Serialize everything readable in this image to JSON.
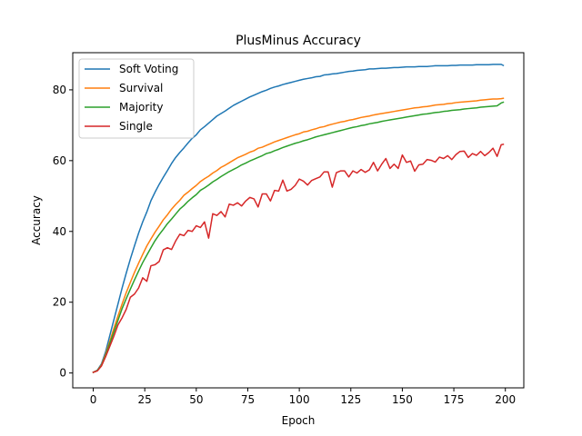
{
  "chart_data": {
    "type": "line",
    "title": "PlusMinus Accuracy",
    "xlabel": "Epoch",
    "ylabel": "Accuracy",
    "xlim": [
      -9.95,
      208.95
    ],
    "ylim": [
      -4.2,
      90.5
    ],
    "xticks": [
      0,
      25,
      50,
      75,
      100,
      125,
      150,
      175,
      200
    ],
    "yticks": [
      0,
      20,
      40,
      60,
      80
    ],
    "grid": false,
    "legend_position": "top-left",
    "series": [
      {
        "name": "Soft Voting",
        "color": "#1f77b4",
        "x": [
          0,
          2,
          4,
          6,
          8,
          10,
          12,
          14,
          16,
          18,
          20,
          22,
          24,
          26,
          28,
          30,
          32,
          34,
          36,
          38,
          40,
          42,
          44,
          46,
          48,
          50,
          52,
          54,
          56,
          58,
          60,
          62,
          64,
          66,
          68,
          70,
          72,
          74,
          76,
          78,
          80,
          82,
          84,
          86,
          88,
          90,
          92,
          94,
          96,
          98,
          100,
          102,
          104,
          106,
          108,
          110,
          112,
          114,
          116,
          118,
          120,
          122,
          124,
          126,
          128,
          130,
          132,
          134,
          136,
          138,
          140,
          142,
          144,
          146,
          148,
          150,
          152,
          154,
          156,
          158,
          160,
          162,
          164,
          166,
          168,
          170,
          172,
          174,
          176,
          178,
          180,
          182,
          184,
          186,
          188,
          190,
          192,
          194,
          196,
          198,
          199
        ],
        "y": [
          0.2,
          0.8,
          2.6,
          6.0,
          10.5,
          15.0,
          19.5,
          24.0,
          28.2,
          32.2,
          35.9,
          39.5,
          42.7,
          45.5,
          48.7,
          51.1,
          53.3,
          55.3,
          57.2,
          59.2,
          60.9,
          62.3,
          63.6,
          65.0,
          66.3,
          67.3,
          68.7,
          69.6,
          70.6,
          71.6,
          72.6,
          73.3,
          74.0,
          74.8,
          75.6,
          76.2,
          76.8,
          77.4,
          78.0,
          78.5,
          79.0,
          79.5,
          79.9,
          80.4,
          80.8,
          81.1,
          81.5,
          81.8,
          82.1,
          82.4,
          82.7,
          83.0,
          83.2,
          83.4,
          83.7,
          83.8,
          84.2,
          84.3,
          84.5,
          84.6,
          84.8,
          85.0,
          85.2,
          85.3,
          85.5,
          85.6,
          85.7,
          85.9,
          85.9,
          86.0,
          86.1,
          86.1,
          86.2,
          86.3,
          86.3,
          86.4,
          86.5,
          86.5,
          86.5,
          86.6,
          86.6,
          86.6,
          86.7,
          86.8,
          86.8,
          86.8,
          86.8,
          86.9,
          86.9,
          87.0,
          87.0,
          87.0,
          87.0,
          87.1,
          87.1,
          87.1,
          87.1,
          87.2,
          87.2,
          87.2,
          86.9
        ]
      },
      {
        "name": "Survival",
        "color": "#ff7f0e",
        "x": [
          0,
          2,
          4,
          6,
          8,
          10,
          12,
          14,
          16,
          18,
          20,
          22,
          24,
          26,
          28,
          30,
          32,
          34,
          36,
          38,
          40,
          42,
          44,
          46,
          48,
          50,
          52,
          54,
          56,
          58,
          60,
          62,
          64,
          66,
          68,
          70,
          72,
          74,
          76,
          78,
          80,
          82,
          84,
          86,
          88,
          90,
          92,
          94,
          96,
          98,
          100,
          102,
          104,
          106,
          108,
          110,
          112,
          114,
          116,
          118,
          120,
          122,
          124,
          126,
          128,
          130,
          132,
          134,
          136,
          138,
          140,
          142,
          144,
          146,
          148,
          150,
          152,
          154,
          156,
          158,
          160,
          162,
          164,
          166,
          168,
          170,
          172,
          174,
          176,
          178,
          180,
          182,
          184,
          186,
          188,
          190,
          192,
          194,
          196,
          198,
          199
        ],
        "y": [
          0.2,
          0.7,
          2.3,
          5.3,
          8.9,
          12.6,
          16.1,
          19.5,
          22.7,
          25.6,
          28.4,
          31.0,
          33.5,
          35.9,
          37.9,
          39.8,
          41.5,
          43.3,
          44.7,
          46.3,
          47.6,
          48.8,
          50.2,
          51.1,
          52.1,
          53.0,
          54.1,
          54.9,
          55.6,
          56.5,
          57.2,
          58.1,
          58.7,
          59.4,
          60.1,
          60.8,
          61.3,
          61.8,
          62.4,
          62.8,
          63.5,
          63.8,
          64.3,
          64.8,
          65.3,
          65.7,
          66.1,
          66.5,
          66.9,
          67.3,
          67.6,
          68.1,
          68.3,
          68.7,
          69.0,
          69.4,
          69.6,
          70.0,
          70.3,
          70.6,
          70.9,
          71.1,
          71.4,
          71.6,
          71.9,
          72.2,
          72.4,
          72.6,
          72.9,
          73.1,
          73.3,
          73.5,
          73.7,
          73.9,
          74.1,
          74.3,
          74.5,
          74.7,
          74.9,
          75.0,
          75.2,
          75.3,
          75.5,
          75.7,
          75.8,
          75.9,
          76.1,
          76.2,
          76.4,
          76.5,
          76.6,
          76.7,
          76.8,
          76.9,
          77.1,
          77.2,
          77.3,
          77.4,
          77.4,
          77.5,
          77.6
        ]
      },
      {
        "name": "Majority",
        "color": "#2ca02c",
        "x": [
          0,
          2,
          4,
          6,
          8,
          10,
          12,
          14,
          16,
          18,
          20,
          22,
          24,
          26,
          28,
          30,
          32,
          34,
          36,
          38,
          40,
          42,
          44,
          46,
          48,
          50,
          52,
          54,
          56,
          58,
          60,
          62,
          64,
          66,
          68,
          70,
          72,
          74,
          76,
          78,
          80,
          82,
          84,
          86,
          88,
          90,
          92,
          94,
          96,
          98,
          100,
          102,
          104,
          106,
          108,
          110,
          112,
          114,
          116,
          118,
          120,
          122,
          124,
          126,
          128,
          130,
          132,
          134,
          136,
          138,
          140,
          142,
          144,
          146,
          148,
          150,
          152,
          154,
          156,
          158,
          160,
          162,
          164,
          166,
          168,
          170,
          172,
          174,
          176,
          178,
          180,
          182,
          184,
          186,
          188,
          190,
          192,
          194,
          196,
          198,
          199
        ],
        "y": [
          0.2,
          0.7,
          2.1,
          4.9,
          8.3,
          11.6,
          14.9,
          18.2,
          21.0,
          23.7,
          26.3,
          28.8,
          31.2,
          33.3,
          35.4,
          37.4,
          39.1,
          40.6,
          42.2,
          43.5,
          44.9,
          46.3,
          47.3,
          48.5,
          49.5,
          50.4,
          51.6,
          52.3,
          53.1,
          54.0,
          54.7,
          55.5,
          56.2,
          56.9,
          57.5,
          58.1,
          58.8,
          59.3,
          59.9,
          60.4,
          60.9,
          61.4,
          62.0,
          62.3,
          62.8,
          63.2,
          63.7,
          64.1,
          64.5,
          64.9,
          65.2,
          65.6,
          65.9,
          66.3,
          66.7,
          67.0,
          67.3,
          67.6,
          67.9,
          68.2,
          68.5,
          68.8,
          69.1,
          69.4,
          69.6,
          69.9,
          70.1,
          70.4,
          70.6,
          70.8,
          71.1,
          71.3,
          71.5,
          71.7,
          71.9,
          72.1,
          72.3,
          72.5,
          72.7,
          72.9,
          73.1,
          73.2,
          73.4,
          73.6,
          73.7,
          73.9,
          74.0,
          74.2,
          74.3,
          74.4,
          74.6,
          74.7,
          74.8,
          74.9,
          75.1,
          75.2,
          75.3,
          75.4,
          75.5,
          76.3,
          76.5
        ]
      },
      {
        "name": "Single",
        "color": "#d62728",
        "x": [
          0,
          2,
          4,
          6,
          8,
          10,
          12,
          14,
          16,
          18,
          20,
          22,
          24,
          26,
          28,
          30,
          32,
          34,
          36,
          38,
          40,
          42,
          44,
          46,
          48,
          50,
          52,
          54,
          56,
          58,
          60,
          62,
          64,
          66,
          68,
          70,
          72,
          74,
          76,
          78,
          80,
          82,
          84,
          86,
          88,
          90,
          92,
          94,
          96,
          98,
          100,
          102,
          104,
          106,
          108,
          110,
          112,
          114,
          116,
          118,
          120,
          122,
          124,
          126,
          128,
          130,
          132,
          134,
          136,
          138,
          140,
          142,
          144,
          146,
          148,
          150,
          152,
          154,
          156,
          158,
          160,
          162,
          164,
          166,
          168,
          170,
          172,
          174,
          176,
          178,
          180,
          182,
          184,
          186,
          188,
          190,
          192,
          194,
          196,
          198,
          199
        ],
        "y": [
          0.2,
          0.6,
          2.0,
          4.6,
          7.5,
          10.4,
          13.6,
          15.6,
          18.0,
          21.4,
          22.3,
          24.0,
          26.9,
          25.9,
          30.3,
          30.6,
          31.5,
          34.8,
          35.4,
          34.9,
          37.3,
          39.2,
          38.8,
          40.3,
          40.0,
          41.6,
          41.1,
          42.7,
          38.1,
          45.0,
          44.5,
          45.6,
          44.1,
          47.7,
          47.4,
          48.1,
          47.2,
          48.6,
          49.6,
          49.2,
          46.9,
          50.6,
          50.6,
          48.6,
          51.6,
          51.4,
          54.5,
          51.4,
          51.9,
          53.0,
          54.8,
          54.2,
          53.1,
          54.4,
          54.9,
          55.4,
          56.8,
          56.8,
          52.5,
          56.6,
          57.1,
          57.1,
          55.4,
          57.1,
          56.5,
          57.5,
          56.7,
          57.4,
          59.5,
          57.1,
          59.0,
          60.6,
          57.8,
          59.0,
          57.8,
          61.6,
          59.5,
          59.9,
          57.0,
          58.8,
          59.0,
          60.3,
          60.1,
          59.6,
          61.0,
          60.6,
          61.4,
          60.3,
          61.7,
          62.6,
          62.7,
          60.9,
          62.0,
          61.5,
          62.6,
          61.4,
          62.3,
          63.5,
          61.2,
          64.5,
          64.6
        ]
      }
    ]
  }
}
